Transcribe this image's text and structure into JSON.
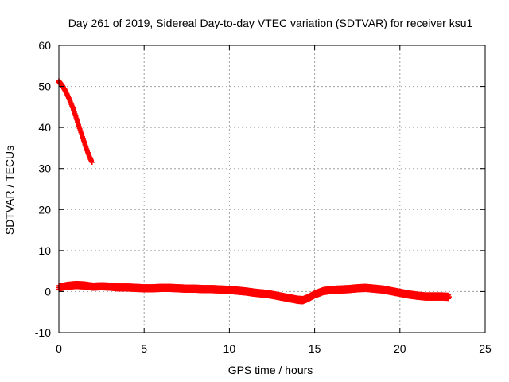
{
  "chart_data": {
    "type": "scatter",
    "title": "Day 261 of 2019, Sidereal Day-to-day VTEC variation (SDTVAR) for receiver ksu1",
    "xlabel": "GPS time / hours",
    "ylabel": "SDTVAR / TECUs",
    "xlim": [
      0,
      25
    ],
    "ylim": [
      -10,
      60
    ],
    "x_ticks": [
      0,
      5,
      10,
      15,
      20,
      25
    ],
    "y_ticks": [
      -10,
      0,
      10,
      20,
      30,
      40,
      50,
      60
    ],
    "grid": true,
    "marker": "plus",
    "series": [
      {
        "name": "SDTVAR ksu1 (steep segment)",
        "color": "#ff0000",
        "points": [
          [
            0.0,
            51.2
          ],
          [
            0.2,
            50.2
          ],
          [
            0.4,
            48.8
          ],
          [
            0.6,
            47.0
          ],
          [
            0.8,
            45.0
          ],
          [
            1.0,
            42.6
          ],
          [
            1.2,
            40.0
          ],
          [
            1.4,
            37.5
          ],
          [
            1.6,
            35.0
          ],
          [
            1.8,
            32.8
          ],
          [
            1.95,
            31.5
          ]
        ]
      },
      {
        "name": "SDTVAR ksu1 (near-zero segment)",
        "color": "#ff0000",
        "points": [
          [
            0.0,
            1.0
          ],
          [
            0.5,
            1.4
          ],
          [
            1.0,
            1.6
          ],
          [
            1.5,
            1.5
          ],
          [
            2.0,
            1.2
          ],
          [
            2.5,
            1.3
          ],
          [
            3.0,
            1.2
          ],
          [
            3.5,
            1.0
          ],
          [
            4.0,
            1.0
          ],
          [
            4.5,
            0.9
          ],
          [
            5.0,
            0.8
          ],
          [
            5.5,
            0.8
          ],
          [
            6.0,
            0.9
          ],
          [
            6.5,
            0.9
          ],
          [
            7.0,
            0.8
          ],
          [
            7.5,
            0.7
          ],
          [
            8.0,
            0.7
          ],
          [
            8.5,
            0.6
          ],
          [
            9.0,
            0.6
          ],
          [
            9.5,
            0.5
          ],
          [
            10.0,
            0.4
          ],
          [
            10.5,
            0.2
          ],
          [
            11.0,
            0.0
          ],
          [
            11.5,
            -0.3
          ],
          [
            12.0,
            -0.5
          ],
          [
            12.5,
            -0.8
          ],
          [
            13.0,
            -1.2
          ],
          [
            13.5,
            -1.6
          ],
          [
            14.0,
            -2.0
          ],
          [
            14.3,
            -2.1
          ],
          [
            14.6,
            -1.6
          ],
          [
            15.0,
            -0.7
          ],
          [
            15.5,
            0.1
          ],
          [
            16.0,
            0.4
          ],
          [
            16.5,
            0.5
          ],
          [
            17.0,
            0.6
          ],
          [
            17.5,
            0.8
          ],
          [
            18.0,
            0.9
          ],
          [
            18.5,
            0.7
          ],
          [
            19.0,
            0.5
          ],
          [
            19.5,
            0.1
          ],
          [
            20.0,
            -0.3
          ],
          [
            20.5,
            -0.7
          ],
          [
            21.0,
            -1.0
          ],
          [
            21.5,
            -1.2
          ],
          [
            22.0,
            -1.2
          ],
          [
            22.5,
            -1.2
          ],
          [
            22.9,
            -1.3
          ]
        ]
      }
    ]
  }
}
